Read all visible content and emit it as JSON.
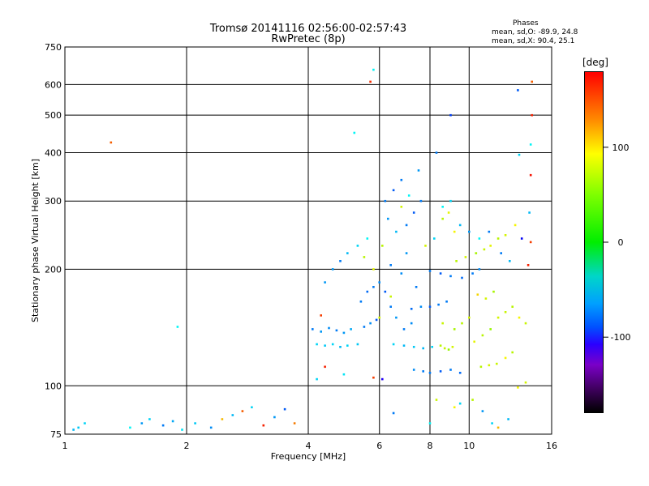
{
  "title_line1": "Tromsø 20141116 02:56:00-02:57:43",
  "title_line2": "RwPretec (8p)",
  "phases": {
    "title": "Phases",
    "o_line": "mean, sd,O: -89.9, 24.8",
    "x_line": "mean, sd,X:  90.4, 25.1"
  },
  "colorbar": {
    "unit": "[deg]",
    "ticks": [
      {
        "value": 100,
        "label": "100"
      },
      {
        "value": 0,
        "label": "0"
      },
      {
        "value": -100,
        "label": "-100"
      }
    ],
    "range": [
      -180,
      180
    ]
  },
  "colors": {
    "grid": "#000000",
    "o_mode": "#1e32dc",
    "x_mode": "#f0e600"
  },
  "chart_data": {
    "type": "scatter",
    "xlabel": "Frequency [MHz]",
    "ylabel": "Stationary phase Virtual Height [km]",
    "xscale": "log",
    "yscale": "log",
    "xlim": [
      1,
      16
    ],
    "ylim": [
      75,
      750
    ],
    "xticks": [
      {
        "value": 1,
        "label": "1"
      },
      {
        "value": 2,
        "label": "2"
      },
      {
        "value": 4,
        "label": "4"
      },
      {
        "value": 6,
        "label": "6"
      },
      {
        "value": 8,
        "label": "8"
      },
      {
        "value": 10,
        "label": "10"
      },
      {
        "value": 16,
        "label": "16"
      }
    ],
    "yticks": [
      {
        "value": 75,
        "label": "75"
      },
      {
        "value": 100,
        "label": "100"
      },
      {
        "value": 200,
        "label": "200"
      },
      {
        "value": 300,
        "label": "300"
      },
      {
        "value": 400,
        "label": "400"
      },
      {
        "value": 500,
        "label": "500"
      },
      {
        "value": 600,
        "label": "600"
      },
      {
        "value": 750,
        "label": "750"
      }
    ],
    "grid": true,
    "points": [
      {
        "x": 1.05,
        "y": 77,
        "p": -80
      },
      {
        "x": 1.08,
        "y": 78,
        "p": -75
      },
      {
        "x": 1.12,
        "y": 80,
        "p": -70
      },
      {
        "x": 1.45,
        "y": 78,
        "p": -60
      },
      {
        "x": 1.55,
        "y": 80,
        "p": -90
      },
      {
        "x": 1.62,
        "y": 82,
        "p": -70
      },
      {
        "x": 1.75,
        "y": 79,
        "p": -100
      },
      {
        "x": 1.85,
        "y": 81,
        "p": -85
      },
      {
        "x": 1.95,
        "y": 77,
        "p": -65
      },
      {
        "x": 2.1,
        "y": 80,
        "p": -75
      },
      {
        "x": 2.3,
        "y": 78,
        "p": -95
      },
      {
        "x": 2.45,
        "y": 82,
        "p": 120
      },
      {
        "x": 2.6,
        "y": 84,
        "p": -80
      },
      {
        "x": 2.75,
        "y": 86,
        "p": 150
      },
      {
        "x": 2.9,
        "y": 88,
        "p": -70
      },
      {
        "x": 3.1,
        "y": 79,
        "p": 170
      },
      {
        "x": 3.3,
        "y": 83,
        "p": -90
      },
      {
        "x": 3.5,
        "y": 87,
        "p": -110
      },
      {
        "x": 3.7,
        "y": 80,
        "p": 140
      },
      {
        "x": 1.3,
        "y": 425,
        "p": 150
      },
      {
        "x": 1.9,
        "y": 142,
        "p": -60
      },
      {
        "x": 5.2,
        "y": 450,
        "p": -60
      },
      {
        "x": 5.7,
        "y": 610,
        "p": 165
      },
      {
        "x": 5.8,
        "y": 655,
        "p": -60
      },
      {
        "x": 13.2,
        "y": 580,
        "p": -110
      },
      {
        "x": 13.3,
        "y": 395,
        "p": -70
      },
      {
        "x": 14.3,
        "y": 610,
        "p": 150
      },
      {
        "x": 14.3,
        "y": 500,
        "p": 170
      },
      {
        "x": 14.2,
        "y": 420,
        "p": -60
      },
      {
        "x": 14.2,
        "y": 350,
        "p": 175
      },
      {
        "x": 14.1,
        "y": 280,
        "p": -80
      },
      {
        "x": 13.5,
        "y": 240,
        "p": -140
      },
      {
        "x": 14.0,
        "y": 205,
        "p": 170
      },
      {
        "x": 8.3,
        "y": 400,
        "p": -100
      },
      {
        "x": 9.0,
        "y": 500,
        "p": -120
      },
      {
        "x": 7.5,
        "y": 360,
        "p": -90
      },
      {
        "x": 4.1,
        "y": 140,
        "p": -100
      },
      {
        "x": 4.3,
        "y": 138,
        "p": -90
      },
      {
        "x": 4.5,
        "y": 141,
        "p": -95
      },
      {
        "x": 4.7,
        "y": 139,
        "p": -100
      },
      {
        "x": 4.9,
        "y": 137,
        "p": -90
      },
      {
        "x": 5.1,
        "y": 140,
        "p": -85
      },
      {
        "x": 4.2,
        "y": 128,
        "p": -70
      },
      {
        "x": 4.4,
        "y": 127,
        "p": -75
      },
      {
        "x": 4.6,
        "y": 128,
        "p": -70
      },
      {
        "x": 4.8,
        "y": 126,
        "p": -80
      },
      {
        "x": 5.0,
        "y": 127,
        "p": -70
      },
      {
        "x": 5.3,
        "y": 128,
        "p": -75
      },
      {
        "x": 5.5,
        "y": 142,
        "p": -100
      },
      {
        "x": 5.7,
        "y": 145,
        "p": -95
      },
      {
        "x": 5.9,
        "y": 148,
        "p": -110
      },
      {
        "x": 5.4,
        "y": 165,
        "p": -100
      },
      {
        "x": 5.6,
        "y": 175,
        "p": -105
      },
      {
        "x": 5.8,
        "y": 180,
        "p": -100
      },
      {
        "x": 6.0,
        "y": 185,
        "p": -95
      },
      {
        "x": 6.2,
        "y": 175,
        "p": -110
      },
      {
        "x": 6.4,
        "y": 160,
        "p": -100
      },
      {
        "x": 6.6,
        "y": 150,
        "p": -90
      },
      {
        "x": 6.9,
        "y": 140,
        "p": -100
      },
      {
        "x": 7.2,
        "y": 145,
        "p": -95
      },
      {
        "x": 4.6,
        "y": 200,
        "p": -90
      },
      {
        "x": 4.8,
        "y": 210,
        "p": -100
      },
      {
        "x": 5.0,
        "y": 220,
        "p": -80
      },
      {
        "x": 5.3,
        "y": 230,
        "p": -70
      },
      {
        "x": 5.6,
        "y": 240,
        "p": -60
      },
      {
        "x": 4.4,
        "y": 185,
        "p": -90
      },
      {
        "x": 6.2,
        "y": 300,
        "p": -100
      },
      {
        "x": 6.5,
        "y": 320,
        "p": -110
      },
      {
        "x": 6.8,
        "y": 340,
        "p": -100
      },
      {
        "x": 6.3,
        "y": 270,
        "p": -90
      },
      {
        "x": 6.6,
        "y": 250,
        "p": -80
      },
      {
        "x": 7.0,
        "y": 260,
        "p": -100
      },
      {
        "x": 7.3,
        "y": 280,
        "p": -110
      },
      {
        "x": 7.6,
        "y": 300,
        "p": -100
      },
      {
        "x": 7.0,
        "y": 220,
        "p": -90
      },
      {
        "x": 6.4,
        "y": 205,
        "p": -100
      },
      {
        "x": 6.8,
        "y": 195,
        "p": -95
      },
      {
        "x": 7.4,
        "y": 180,
        "p": -100
      },
      {
        "x": 6.5,
        "y": 128,
        "p": -70
      },
      {
        "x": 6.9,
        "y": 127,
        "p": -80
      },
      {
        "x": 7.3,
        "y": 126,
        "p": -75
      },
      {
        "x": 7.7,
        "y": 125,
        "p": -80
      },
      {
        "x": 8.1,
        "y": 126,
        "p": -70
      },
      {
        "x": 8.5,
        "y": 127,
        "p": 80
      },
      {
        "x": 8.7,
        "y": 125,
        "p": 85
      },
      {
        "x": 8.9,
        "y": 124,
        "p": 70
      },
      {
        "x": 9.1,
        "y": 126,
        "p": 90
      },
      {
        "x": 8.0,
        "y": 198,
        "p": -100
      },
      {
        "x": 8.5,
        "y": 195,
        "p": -110
      },
      {
        "x": 9.0,
        "y": 192,
        "p": -100
      },
      {
        "x": 9.6,
        "y": 190,
        "p": -105
      },
      {
        "x": 10.2,
        "y": 195,
        "p": -100
      },
      {
        "x": 10.6,
        "y": 200,
        "p": -95
      },
      {
        "x": 9.3,
        "y": 210,
        "p": 80
      },
      {
        "x": 9.8,
        "y": 215,
        "p": 90
      },
      {
        "x": 10.4,
        "y": 220,
        "p": 75
      },
      {
        "x": 10.9,
        "y": 225,
        "p": 85
      },
      {
        "x": 11.3,
        "y": 230,
        "p": 95
      },
      {
        "x": 11.8,
        "y": 240,
        "p": 80
      },
      {
        "x": 12.3,
        "y": 245,
        "p": 90
      },
      {
        "x": 8.0,
        "y": 160,
        "p": -110
      },
      {
        "x": 8.4,
        "y": 162,
        "p": -100
      },
      {
        "x": 8.8,
        "y": 165,
        "p": -100
      },
      {
        "x": 7.6,
        "y": 160,
        "p": -95
      },
      {
        "x": 7.2,
        "y": 158,
        "p": -105
      },
      {
        "x": 8.0,
        "y": 108,
        "p": -100
      },
      {
        "x": 8.5,
        "y": 109,
        "p": -110
      },
      {
        "x": 9.0,
        "y": 110,
        "p": -100
      },
      {
        "x": 9.5,
        "y": 108,
        "p": -105
      },
      {
        "x": 7.3,
        "y": 110,
        "p": -95
      },
      {
        "x": 7.7,
        "y": 109,
        "p": -100
      },
      {
        "x": 10.7,
        "y": 112,
        "p": 80
      },
      {
        "x": 11.2,
        "y": 113,
        "p": 90
      },
      {
        "x": 11.7,
        "y": 114,
        "p": 85
      },
      {
        "x": 12.3,
        "y": 118,
        "p": 100
      },
      {
        "x": 12.8,
        "y": 122,
        "p": 80
      },
      {
        "x": 10.3,
        "y": 130,
        "p": 95
      },
      {
        "x": 10.8,
        "y": 135,
        "p": 80
      },
      {
        "x": 11.3,
        "y": 140,
        "p": 70
      },
      {
        "x": 11.8,
        "y": 150,
        "p": 90
      },
      {
        "x": 12.3,
        "y": 155,
        "p": 85
      },
      {
        "x": 12.8,
        "y": 160,
        "p": 80
      },
      {
        "x": 13.3,
        "y": 150,
        "p": 100
      },
      {
        "x": 13.8,
        "y": 145,
        "p": 85
      },
      {
        "x": 9.2,
        "y": 140,
        "p": 75
      },
      {
        "x": 9.6,
        "y": 145,
        "p": 80
      },
      {
        "x": 10.0,
        "y": 150,
        "p": 90
      },
      {
        "x": 8.6,
        "y": 145,
        "p": 85
      },
      {
        "x": 10.5,
        "y": 172,
        "p": 110
      },
      {
        "x": 11.0,
        "y": 168,
        "p": 90
      },
      {
        "x": 11.5,
        "y": 175,
        "p": 75
      },
      {
        "x": 9.5,
        "y": 260,
        "p": -80
      },
      {
        "x": 10.0,
        "y": 250,
        "p": -90
      },
      {
        "x": 10.6,
        "y": 240,
        "p": -60
      },
      {
        "x": 11.2,
        "y": 250,
        "p": -100
      },
      {
        "x": 8.6,
        "y": 270,
        "p": 80
      },
      {
        "x": 8.9,
        "y": 280,
        "p": 95
      },
      {
        "x": 9.2,
        "y": 250,
        "p": 100
      },
      {
        "x": 8.2,
        "y": 240,
        "p": -70
      },
      {
        "x": 7.8,
        "y": 230,
        "p": 90
      },
      {
        "x": 6.1,
        "y": 230,
        "p": 80
      },
      {
        "x": 6.8,
        "y": 290,
        "p": 90
      },
      {
        "x": 7.1,
        "y": 310,
        "p": -60
      },
      {
        "x": 5.8,
        "y": 200,
        "p": 95
      },
      {
        "x": 5.5,
        "y": 215,
        "p": 80
      },
      {
        "x": 6.0,
        "y": 150,
        "p": 90
      },
      {
        "x": 6.4,
        "y": 170,
        "p": 85
      },
      {
        "x": 9.2,
        "y": 88,
        "p": 100
      },
      {
        "x": 9.5,
        "y": 90,
        "p": -70
      },
      {
        "x": 10.2,
        "y": 92,
        "p": 80
      },
      {
        "x": 10.8,
        "y": 86,
        "p": -90
      },
      {
        "x": 11.4,
        "y": 80,
        "p": -70
      },
      {
        "x": 11.8,
        "y": 78,
        "p": 120
      },
      {
        "x": 12.5,
        "y": 82,
        "p": -80
      },
      {
        "x": 13.2,
        "y": 99,
        "p": 100
      },
      {
        "x": 13.8,
        "y": 102,
        "p": 90
      },
      {
        "x": 8.3,
        "y": 92,
        "p": 85
      },
      {
        "x": 8.0,
        "y": 80,
        "p": -60
      },
      {
        "x": 6.5,
        "y": 85,
        "p": -100
      },
      {
        "x": 4.4,
        "y": 112,
        "p": 170
      },
      {
        "x": 4.2,
        "y": 104,
        "p": -70
      },
      {
        "x": 4.9,
        "y": 107,
        "p": -65
      },
      {
        "x": 4.3,
        "y": 152,
        "p": 160
      },
      {
        "x": 5.8,
        "y": 105,
        "p": 160
      },
      {
        "x": 6.1,
        "y": 104,
        "p": -150
      },
      {
        "x": 8.6,
        "y": 290,
        "p": -60
      },
      {
        "x": 9.0,
        "y": 300,
        "p": -70
      },
      {
        "x": 12.0,
        "y": 220,
        "p": -100
      },
      {
        "x": 12.6,
        "y": 210,
        "p": -80
      },
      {
        "x": 13.0,
        "y": 260,
        "p": 100
      },
      {
        "x": 14.2,
        "y": 235,
        "p": 160
      }
    ]
  }
}
